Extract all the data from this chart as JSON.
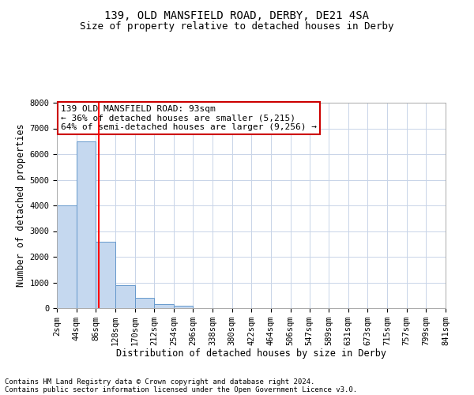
{
  "title1": "139, OLD MANSFIELD ROAD, DERBY, DE21 4SA",
  "title2": "Size of property relative to detached houses in Derby",
  "xlabel": "Distribution of detached houses by size in Derby",
  "ylabel": "Number of detached properties",
  "footnote1": "Contains HM Land Registry data © Crown copyright and database right 2024.",
  "footnote2": "Contains public sector information licensed under the Open Government Licence v3.0.",
  "annotation_line1": "139 OLD MANSFIELD ROAD: 93sqm",
  "annotation_line2": "← 36% of detached houses are smaller (5,215)",
  "annotation_line3": "64% of semi-detached houses are larger (9,256) →",
  "bar_left_edges": [
    2,
    44,
    86,
    128,
    170,
    212,
    254,
    296,
    338,
    380,
    422,
    464,
    506,
    547,
    589,
    631,
    673,
    715,
    757,
    799
  ],
  "bar_heights": [
    4000,
    6500,
    2600,
    900,
    400,
    150,
    100,
    0,
    0,
    0,
    0,
    0,
    0,
    0,
    0,
    0,
    0,
    0,
    0,
    0
  ],
  "bin_width": 42,
  "bar_color": "#c5d8ef",
  "bar_edge_color": "#6699cc",
  "red_line_x": 93,
  "ylim": [
    0,
    8000
  ],
  "xlim": [
    2,
    841
  ],
  "tick_labels": [
    "2sqm",
    "44sqm",
    "86sqm",
    "128sqm",
    "170sqm",
    "212sqm",
    "254sqm",
    "296sqm",
    "338sqm",
    "380sqm",
    "422sqm",
    "464sqm",
    "506sqm",
    "547sqm",
    "589sqm",
    "631sqm",
    "673sqm",
    "715sqm",
    "757sqm",
    "799sqm",
    "841sqm"
  ],
  "tick_positions": [
    2,
    44,
    86,
    128,
    170,
    212,
    254,
    296,
    338,
    380,
    422,
    464,
    506,
    547,
    589,
    631,
    673,
    715,
    757,
    799,
    841
  ],
  "yticks": [
    0,
    1000,
    2000,
    3000,
    4000,
    5000,
    6000,
    7000,
    8000
  ],
  "background_color": "#ffffff",
  "grid_color": "#c8d4e8",
  "annotation_box_color": "#ffffff",
  "annotation_box_edge_color": "#cc0000",
  "title1_fontsize": 10,
  "title2_fontsize": 9,
  "annotation_fontsize": 8,
  "axis_label_fontsize": 8.5,
  "tick_fontsize": 7.5,
  "footnote_fontsize": 6.5
}
